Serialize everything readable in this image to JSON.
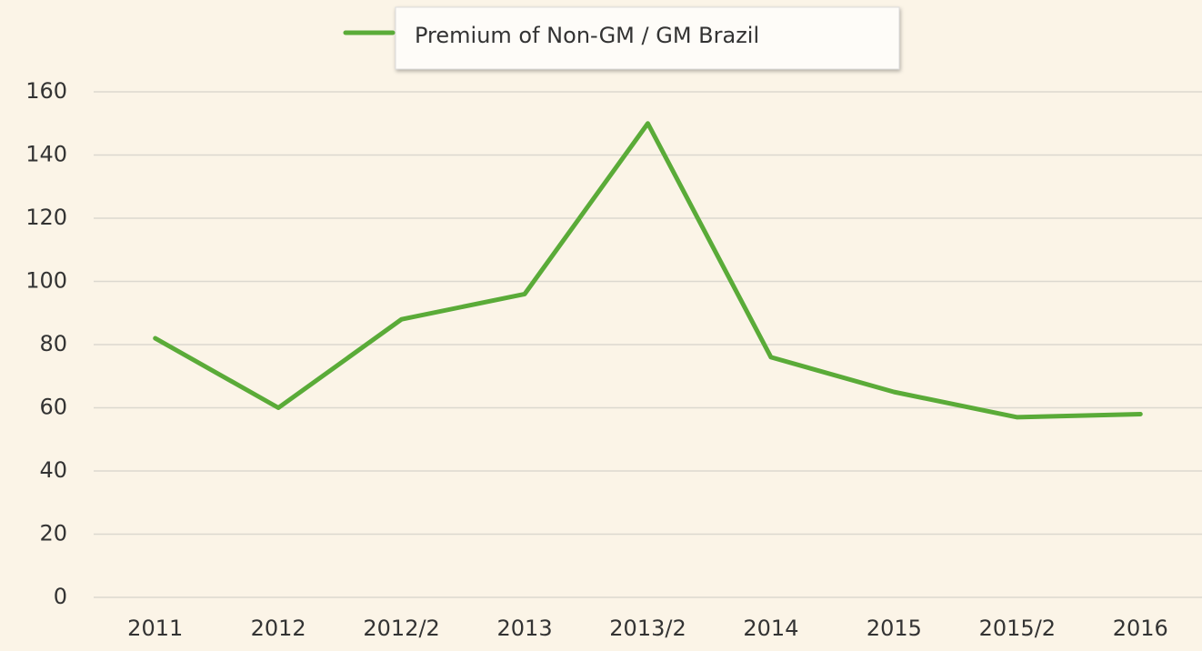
{
  "chart_data": {
    "type": "line",
    "categories": [
      "2011",
      "2012",
      "2012/2",
      "2013",
      "2013/2",
      "2014",
      "2015",
      "2015/2",
      "2016"
    ],
    "series": [
      {
        "name": "Premium of Non-GM / GM Brazil",
        "color": "#5aab38",
        "values": [
          82,
          60,
          88,
          96,
          150,
          76,
          65,
          57,
          58
        ]
      }
    ],
    "ylim": [
      0,
      160
    ],
    "yticks": [
      0,
      20,
      40,
      60,
      80,
      100,
      120,
      140,
      160
    ],
    "grid": true,
    "legend": "top"
  }
}
